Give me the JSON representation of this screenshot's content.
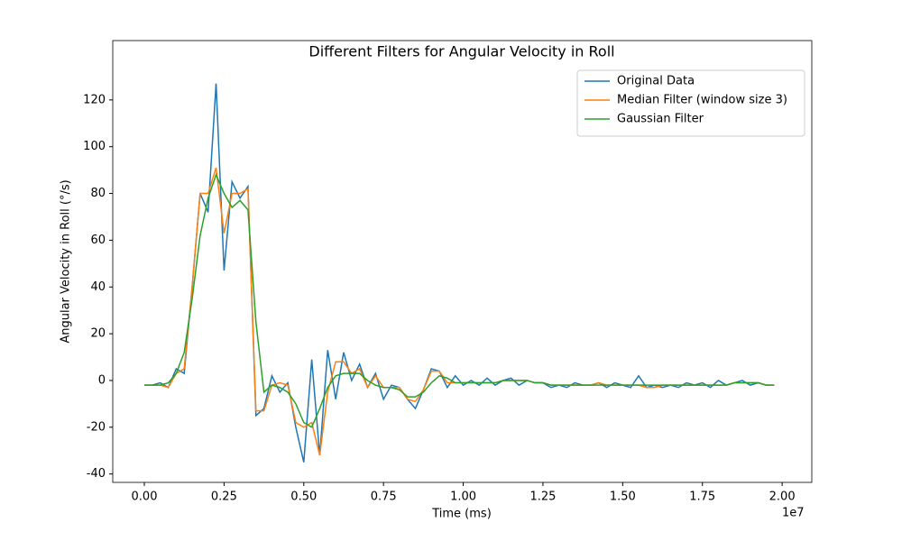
{
  "chart_data": {
    "type": "line",
    "title": "Different Filters for Angular Velocity in Roll",
    "x_label": "Time (ms)",
    "y_label": "Angular Velocity in Roll (°/s)",
    "x_offset_text": "1e7",
    "x": [
      0,
      0.025,
      0.05,
      0.075,
      0.1,
      0.125,
      0.15,
      0.175,
      0.2,
      0.225,
      0.25,
      0.275,
      0.3,
      0.325,
      0.35,
      0.375,
      0.4,
      0.425,
      0.45,
      0.475,
      0.5,
      0.525,
      0.55,
      0.575,
      0.6,
      0.625,
      0.65,
      0.675,
      0.7,
      0.725,
      0.75,
      0.775,
      0.8,
      0.825,
      0.85,
      0.875,
      0.9,
      0.925,
      0.95,
      0.975,
      1.0,
      1.025,
      1.05,
      1.075,
      1.1,
      1.125,
      1.15,
      1.175,
      1.2,
      1.225,
      1.25,
      1.275,
      1.3,
      1.325,
      1.35,
      1.375,
      1.4,
      1.425,
      1.45,
      1.475,
      1.5,
      1.525,
      1.55,
      1.575,
      1.6,
      1.625,
      1.65,
      1.675,
      1.7,
      1.725,
      1.75,
      1.775,
      1.8,
      1.825,
      1.85,
      1.875,
      1.9,
      1.925,
      1.95,
      1.975
    ],
    "series": [
      {
        "name": "Original Data",
        "color": "#1f77b4",
        "values": [
          -2,
          -2,
          -1,
          -3,
          5,
          3,
          40,
          80,
          72,
          127,
          47,
          85,
          78,
          83,
          -15,
          -12,
          2,
          -5,
          -1,
          -20,
          -35,
          9,
          -32,
          13,
          -8,
          12,
          0,
          7,
          -3,
          3,
          -8,
          -2,
          -3,
          -8,
          -12,
          -4,
          5,
          4,
          -3,
          2,
          -2,
          0,
          -2,
          1,
          -2,
          0,
          1,
          -2,
          0,
          -1,
          -1,
          -3,
          -2,
          -3,
          -1,
          -2,
          -2,
          -1,
          -3,
          -1,
          -2,
          -3,
          2,
          -3,
          -2,
          -3,
          -2,
          -3,
          -1,
          -2,
          -1,
          -3,
          0,
          -2,
          -1,
          0,
          -2,
          -1,
          -2,
          -2
        ]
      },
      {
        "name": "Median Filter (window size 3)",
        "color": "#ff7f0e",
        "values": [
          -2,
          -2,
          -2,
          -3,
          3,
          5,
          40,
          80,
          80,
          91,
          63,
          80,
          80,
          82,
          -13,
          -13,
          -2,
          -1,
          -2,
          -18,
          -20,
          -18,
          -32,
          -5,
          8,
          8,
          3,
          5,
          -3,
          2,
          -3,
          -3,
          -3,
          -8,
          -9,
          -4,
          4,
          4,
          -1,
          -1,
          -1,
          -1,
          -1,
          -1,
          -1,
          0,
          0,
          0,
          0,
          -1,
          -1,
          -2,
          -2,
          -2,
          -2,
          -2,
          -2,
          -1,
          -2,
          -2,
          -2,
          -2,
          -2,
          -3,
          -3,
          -2,
          -2,
          -2,
          -2,
          -2,
          -2,
          -2,
          -2,
          -2,
          -1,
          -1,
          -1,
          -1,
          -2,
          -2
        ]
      },
      {
        "name": "Gaussian Filter",
        "color": "#2ca02c",
        "values": [
          -2,
          -2,
          -2,
          -1,
          3,
          12,
          35,
          62,
          78,
          88,
          80,
          74,
          77,
          73,
          25,
          -5,
          -2,
          -3,
          -5,
          -10,
          -18,
          -20,
          -12,
          -3,
          2,
          3,
          3,
          3,
          0,
          -2,
          -3,
          -3,
          -4,
          -7,
          -7,
          -5,
          -1,
          2,
          1,
          -1,
          -1,
          -1,
          -1,
          -1,
          -1,
          0,
          0,
          0,
          0,
          -1,
          -1,
          -2,
          -2,
          -2,
          -2,
          -2,
          -2,
          -2,
          -2,
          -2,
          -2,
          -2,
          -2,
          -2,
          -2,
          -2,
          -2,
          -2,
          -2,
          -2,
          -2,
          -2,
          -2,
          -2,
          -1,
          -1,
          -1,
          -1,
          -2,
          -2
        ]
      }
    ],
    "xlim": [
      -0.099,
      2.093
    ],
    "xticks": [
      {
        "value": 0,
        "label": "0.00"
      },
      {
        "value": 0.25,
        "label": "0.25"
      },
      {
        "value": 0.5,
        "label": "0.50"
      },
      {
        "value": 0.75,
        "label": "0.75"
      },
      {
        "value": 1,
        "label": "1.00"
      },
      {
        "value": 1.25,
        "label": "1.25"
      },
      {
        "value": 1.5,
        "label": "1.50"
      },
      {
        "value": 1.75,
        "label": "1.75"
      },
      {
        "value": 2,
        "label": "2.00"
      }
    ],
    "ylim": [
      -43.6,
      145.4
    ],
    "yticks": [
      -40,
      -20,
      0,
      20,
      40,
      60,
      80,
      100,
      120
    ],
    "grid": false,
    "legend": "upper right"
  }
}
